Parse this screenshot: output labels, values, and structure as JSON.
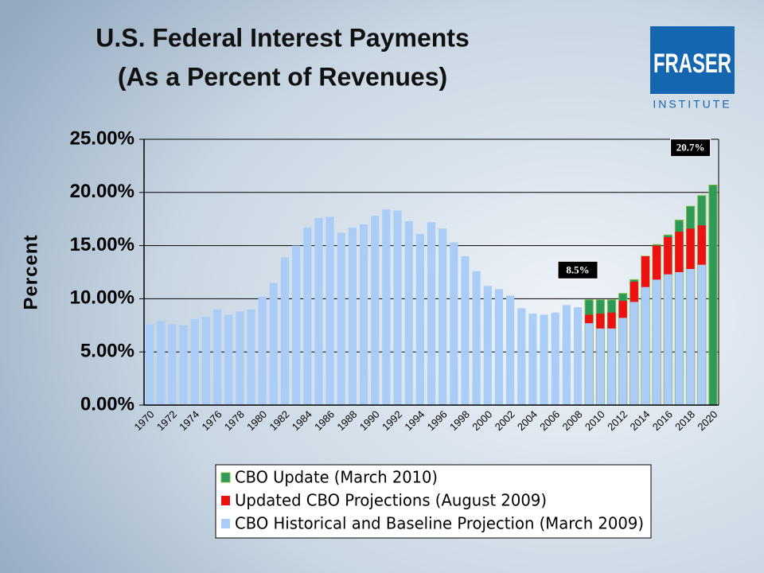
{
  "chart_data": {
    "type": "bar",
    "title": "U.S. Federal Interest Payments",
    "subtitle": "(As a Percent of Revenues)",
    "logo": {
      "name": "FRASER",
      "subname": "INSTITUTE"
    },
    "y_label": "Percent",
    "categories": [
      "1970",
      null,
      "1972",
      null,
      "1974",
      null,
      "1976",
      null,
      "1978",
      null,
      "1980",
      null,
      "1982",
      null,
      "1984",
      null,
      "1986",
      null,
      "1988",
      null,
      "1990",
      null,
      "1992",
      null,
      "1994",
      null,
      "1996",
      null,
      "1998",
      null,
      "2000",
      null,
      "2002",
      null,
      "2004",
      null,
      "2006",
      null,
      "2008",
      null,
      "2010",
      null,
      "2012",
      null,
      "2014",
      null,
      "2016",
      null,
      "2018",
      null,
      "2020"
    ],
    "series": [
      {
        "name": "CBO Update (March 2010)",
        "color": "#2e9a5a",
        "values": [
          null,
          null,
          null,
          null,
          null,
          null,
          null,
          null,
          null,
          null,
          null,
          null,
          null,
          null,
          null,
          null,
          null,
          null,
          null,
          null,
          null,
          null,
          null,
          null,
          null,
          null,
          null,
          null,
          null,
          null,
          null,
          null,
          null,
          null,
          null,
          null,
          null,
          null,
          null,
          9.9,
          9.9,
          9.9,
          10.5,
          11.8,
          14.0,
          15.1,
          16.0,
          17.4,
          18.7,
          19.7,
          20.7
        ]
      },
      {
        "name": "Updated CBO Projections (August 2009)",
        "color": "#ee1111",
        "values": [
          null,
          null,
          null,
          null,
          null,
          null,
          null,
          null,
          null,
          null,
          null,
          null,
          null,
          null,
          null,
          null,
          null,
          null,
          null,
          null,
          null,
          null,
          null,
          null,
          null,
          null,
          null,
          null,
          null,
          null,
          null,
          null,
          null,
          null,
          null,
          null,
          null,
          null,
          null,
          8.5,
          8.6,
          8.7,
          9.8,
          11.6,
          14.0,
          15.0,
          15.8,
          16.3,
          16.6,
          16.9,
          null
        ]
      },
      {
        "name": "CBO Historical and Baseline Projection (March 2009)",
        "color": "#a9cdf7",
        "values": [
          7.6,
          7.9,
          7.6,
          7.5,
          8.1,
          8.3,
          9.0,
          8.5,
          8.8,
          9.0,
          10.2,
          11.5,
          13.9,
          15.0,
          16.7,
          17.6,
          17.7,
          16.2,
          16.7,
          17.0,
          17.8,
          18.4,
          18.3,
          17.3,
          16.1,
          17.2,
          16.6,
          15.3,
          14.0,
          12.6,
          11.2,
          10.9,
          10.3,
          9.1,
          8.6,
          8.5,
          8.7,
          9.4,
          9.2,
          7.7,
          7.2,
          7.2,
          8.2,
          9.7,
          11.1,
          11.8,
          12.3,
          12.5,
          12.8,
          13.2,
          null
        ]
      }
    ],
    "annotations": [
      "8.5%",
      "20.7%"
    ],
    "ylim": [
      0,
      25
    ],
    "yticks": [
      {
        "value": 0,
        "label": "0.00%"
      },
      {
        "value": 5,
        "label": "5.00%"
      },
      {
        "value": 10,
        "label": "10.00%"
      },
      {
        "value": 15,
        "label": "15.00%"
      },
      {
        "value": 20,
        "label": "20.00%"
      },
      {
        "value": 25,
        "label": "25.00%"
      }
    ],
    "grid": true,
    "legend": "bottom"
  }
}
